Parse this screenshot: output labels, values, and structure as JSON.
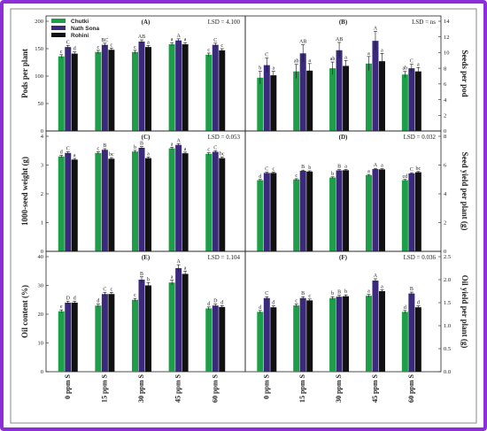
{
  "chart_data": {
    "type": "bar",
    "categories": [
      "0 ppm S",
      "15 ppm S",
      "30 ppm S",
      "45 ppm S",
      "60 ppm S"
    ],
    "series_names": [
      "Chutki",
      "Nath Sona",
      "Rohini"
    ],
    "colors": [
      "#1f9e4a",
      "#3b2a7c",
      "#111111"
    ],
    "grid": false,
    "legend_position": "top-left of panel A",
    "panels": [
      {
        "id": "A",
        "title": "(A)",
        "lsd": "LSD = 4.100",
        "ylabel": "Pods per plant",
        "yaxis": "left",
        "ylim": [
          0,
          200
        ],
        "ticks": [
          0,
          50,
          100,
          150,
          200
        ],
        "tick_labels": [
          "0",
          "50",
          "100",
          "150",
          "200"
        ],
        "series": [
          {
            "values": [
              136,
              144,
              144,
              158,
              139
            ],
            "errors": [
              3,
              3,
              3,
              3,
              3
            ],
            "letters": [
              "c",
              "c",
              "c",
              "a",
              "c"
            ]
          },
          {
            "values": [
              153,
              157,
              163,
              165,
              157
            ],
            "errors": [
              3,
              3,
              3,
              3,
              3
            ],
            "letters": [
              "C",
              "BC",
              "AB",
              "A",
              "C"
            ]
          },
          {
            "values": [
              141,
              148,
              153,
              158,
              147
            ],
            "errors": [
              3,
              3,
              3,
              3,
              3
            ],
            "letters": [
              "d",
              "c",
              "a",
              "a",
              "c"
            ]
          }
        ]
      },
      {
        "id": "B",
        "title": "(B)",
        "lsd": "LSD = ns",
        "ylabel": "Seeds per pod",
        "yaxis": "right",
        "ylim": [
          0,
          14
        ],
        "ticks": [
          0,
          2,
          4,
          6,
          8,
          10,
          12,
          14
        ],
        "tick_labels": [
          "0",
          "2",
          "4",
          "6",
          "8",
          "10",
          "12",
          "14"
        ],
        "series": [
          {
            "values": [
              6.8,
              7.6,
              8.0,
              8.6,
              7.2
            ],
            "errors": [
              0.8,
              0.9,
              0.8,
              0.9,
              0.4
            ],
            "letters": [
              "b",
              "ab",
              "ab",
              "a",
              "ab"
            ]
          },
          {
            "values": [
              8.4,
              9.9,
              10.3,
              11.5,
              8.0
            ],
            "errors": [
              0.9,
              1.1,
              1.0,
              1.2,
              0.5
            ],
            "letters": [
              "C",
              "AB",
              "AB",
              "A",
              "C"
            ]
          },
          {
            "values": [
              7.1,
              7.7,
              8.3,
              8.9,
              7.6
            ],
            "errors": [
              0.5,
              0.9,
              0.7,
              1.0,
              0.5
            ],
            "letters": [
              "a",
              "a",
              "a",
              "a",
              "a"
            ]
          }
        ]
      },
      {
        "id": "C",
        "title": "(C)",
        "lsd": "LSD = 0.053",
        "ylabel": "1000-seed weight (g)",
        "yaxis": "left",
        "ylim": [
          0,
          4
        ],
        "ticks": [
          0,
          1,
          2,
          3,
          4
        ],
        "tick_labels": [
          "0",
          "1",
          "2",
          "3",
          "4"
        ],
        "series": [
          {
            "values": [
              3.3,
              3.42,
              3.47,
              3.58,
              3.39
            ],
            "errors": [
              0.04,
              0.04,
              0.04,
              0.04,
              0.04
            ],
            "letters": [
              "d",
              "c",
              "b",
              "a",
              "c"
            ]
          },
          {
            "values": [
              3.42,
              3.53,
              3.6,
              3.7,
              3.46
            ],
            "errors": [
              0.04,
              0.04,
              0.04,
              0.04,
              0.04
            ],
            "letters": [
              "C",
              "B",
              "B",
              "A",
              "C"
            ]
          },
          {
            "values": [
              3.19,
              3.22,
              3.24,
              3.41,
              3.24
            ],
            "errors": [
              0.04,
              0.04,
              0.04,
              0.04,
              0.04
            ],
            "letters": [
              "a",
              "bc",
              "a",
              "a",
              "bc"
            ]
          }
        ]
      },
      {
        "id": "D",
        "title": "(D)",
        "lsd": "LSD = 0.032",
        "ylabel": "Seed yield per plant (g)",
        "yaxis": "right",
        "ylim": [
          0,
          8
        ],
        "ticks": [
          0,
          2,
          4,
          6,
          8
        ],
        "tick_labels": [
          "0",
          "2",
          "4",
          "6",
          "8"
        ],
        "series": [
          {
            "values": [
              4.95,
              5.0,
              5.13,
              5.3,
              4.95
            ],
            "errors": [
              0.05,
              0.05,
              0.05,
              0.05,
              0.05
            ],
            "letters": [
              "d",
              "c",
              "b",
              "a",
              "cd"
            ]
          },
          {
            "values": [
              5.45,
              5.6,
              5.63,
              5.72,
              5.42
            ],
            "errors": [
              0.05,
              0.05,
              0.05,
              0.05,
              0.05
            ],
            "letters": [
              "C",
              "B",
              "B",
              "A",
              "C"
            ]
          },
          {
            "values": [
              5.45,
              5.55,
              5.64,
              5.7,
              5.5
            ],
            "errors": [
              0.05,
              0.05,
              0.05,
              0.05,
              0.05
            ],
            "letters": [
              "c",
              "b",
              "a",
              "a",
              "bc"
            ]
          }
        ]
      },
      {
        "id": "E",
        "title": "(E)",
        "lsd": "LSD = 1.104",
        "ylabel": "Oil content (%)",
        "yaxis": "left",
        "ylim": [
          0,
          40
        ],
        "ticks": [
          0,
          10,
          20,
          30,
          40
        ],
        "tick_labels": [
          "0",
          "10",
          "20",
          "30",
          "40"
        ],
        "series": [
          {
            "values": [
              21.0,
              23.0,
              25.0,
              31.0,
              22.0
            ],
            "errors": [
              0.5,
              0.5,
              0.5,
              0.8,
              0.5
            ],
            "letters": [
              "e",
              "d",
              "c",
              "a",
              "d"
            ]
          },
          {
            "values": [
              24.0,
              27.0,
              32.0,
              36.0,
              23.0
            ],
            "errors": [
              0.5,
              0.6,
              1.0,
              1.2,
              0.5
            ],
            "letters": [
              "D",
              "C",
              "B",
              "A",
              "D"
            ]
          },
          {
            "values": [
              24.0,
              27.0,
              30.0,
              34.0,
              22.5
            ],
            "errors": [
              0.5,
              0.6,
              1.0,
              1.0,
              0.5
            ],
            "letters": [
              "d",
              "c",
              "b",
              "a",
              "d"
            ]
          }
        ]
      },
      {
        "id": "F",
        "title": "(F)",
        "lsd": "LSD = 0.036",
        "ylabel": "Oil yield per plant (g)",
        "yaxis": "right",
        "ylim": [
          0,
          2.5
        ],
        "ticks": [
          0,
          0.5,
          1.0,
          1.5,
          2.0,
          2.5
        ],
        "tick_labels": [
          "0.0",
          "0.5",
          "1.0",
          "1.5",
          "2.0",
          "2.5"
        ],
        "series": [
          {
            "values": [
              1.3,
              1.44,
              1.6,
              1.65,
              1.3
            ],
            "errors": [
              0.03,
              0.03,
              0.03,
              0.03,
              0.03
            ],
            "letters": [
              "d",
              "c",
              "b",
              "a",
              "d"
            ]
          },
          {
            "values": [
              1.6,
              1.6,
              1.63,
              1.98,
              1.7
            ],
            "errors": [
              0.03,
              0.03,
              0.03,
              0.04,
              0.03
            ],
            "letters": [
              "C",
              "B",
              "B",
              "A",
              "B"
            ]
          },
          {
            "values": [
              1.4,
              1.55,
              1.64,
              1.75,
              1.4
            ],
            "errors": [
              0.03,
              0.03,
              0.03,
              0.03,
              0.03
            ],
            "letters": [
              "d",
              "c",
              "b",
              "a",
              "d"
            ]
          }
        ]
      }
    ]
  }
}
